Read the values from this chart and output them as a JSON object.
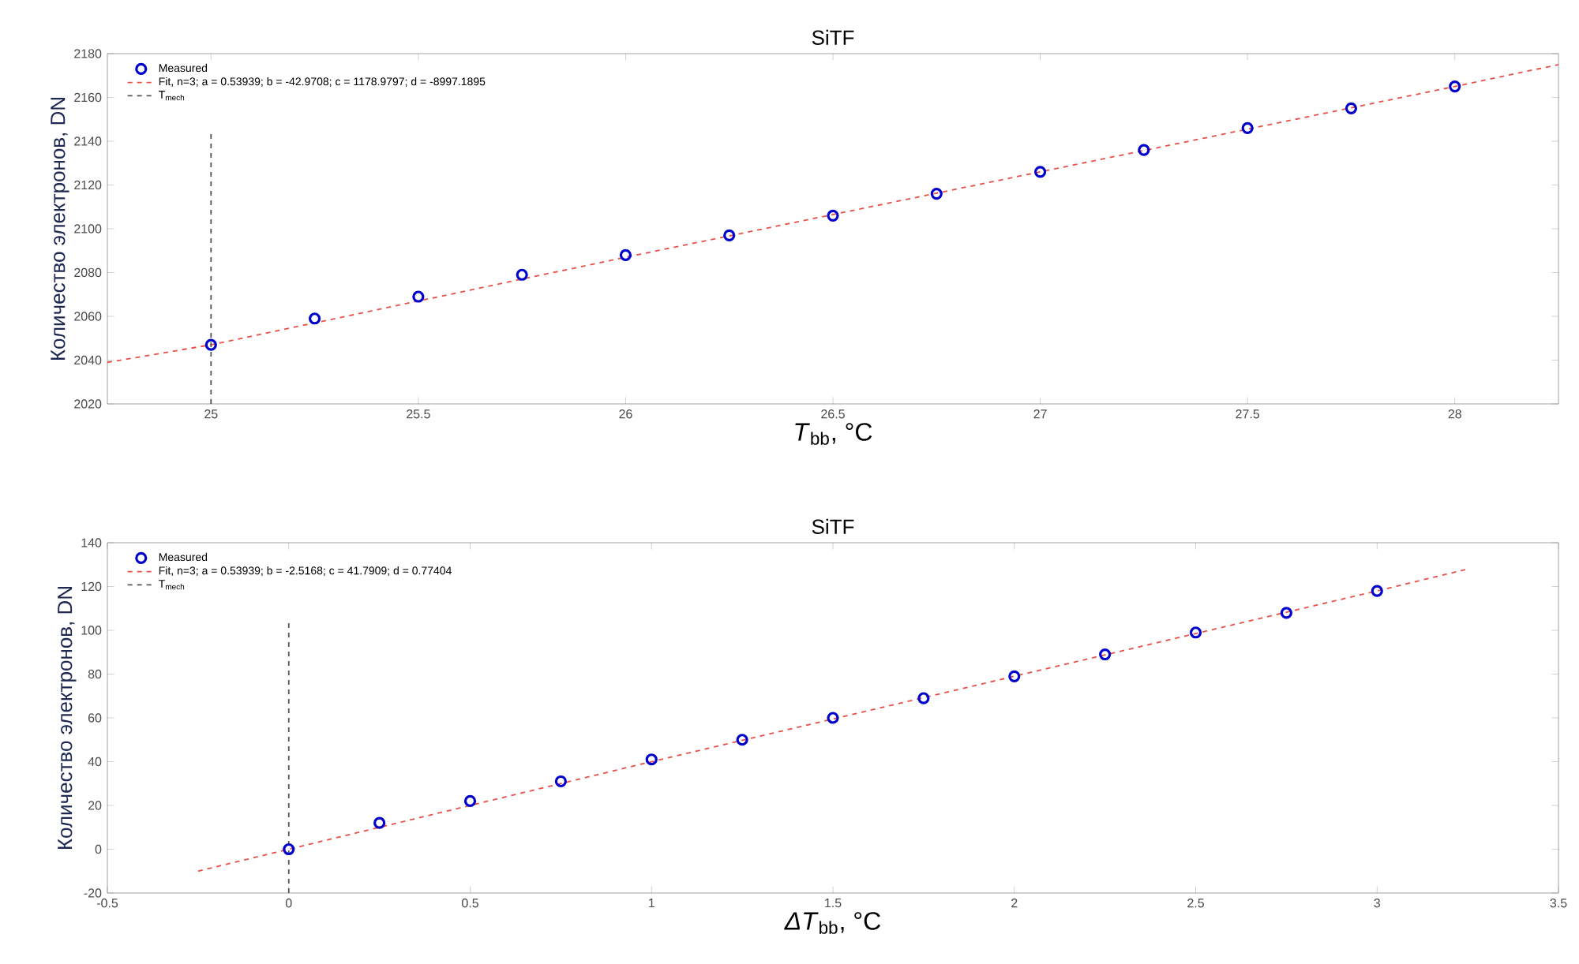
{
  "chart_data": [
    {
      "type": "scatter",
      "title": "SiTF",
      "xlabel": "*T*$_{bb}$, °C",
      "ylabel": "Количество электронов, DN",
      "legend": "top left",
      "xlim": [
        24.75,
        28.25
      ],
      "ylim": [
        2020,
        2180
      ],
      "xticks": [
        25,
        25.5,
        26,
        26.5,
        27,
        27.5,
        28
      ],
      "yticks": [
        2020,
        2040,
        2060,
        2080,
        2100,
        2120,
        2140,
        2160,
        2180
      ],
      "series": [
        {
          "name": "Measured",
          "type": "scatter",
          "marker": "circle",
          "color": "#0000cc",
          "x": [
            25,
            25.25,
            25.5,
            25.75,
            26,
            26.25,
            26.5,
            26.75,
            27,
            27.25,
            27.5,
            27.75,
            28
          ],
          "values": [
            2047,
            2059,
            2069,
            2079,
            2088,
            2097,
            2106,
            2116,
            2126,
            2136,
            2146,
            2155,
            2165
          ]
        },
        {
          "name": "Fit, n=3; a = 0.53939; b = -42.9708; c = 1178.9797; d = -8997.1895",
          "type": "line",
          "line_style": "dashed",
          "color": "#e8504a",
          "x": [
            24.75,
            25,
            26,
            27,
            28,
            28.25
          ],
          "values": [
            2039,
            2047,
            2087,
            2126,
            2165,
            2175
          ]
        }
      ],
      "ref_lines": [
        {
          "axis": "x",
          "value": 25,
          "label": "T$_{mech}$",
          "color": "#555555",
          "line_style": "dashed"
        }
      ]
    },
    {
      "type": "scatter",
      "title": "SiTF",
      "xlabel": "*ΔT*$_{bb}$, °C",
      "ylabel": "Количество электронов, DN",
      "legend": "top left",
      "xlim": [
        -0.5,
        3.5
      ],
      "ylim": [
        -20,
        140
      ],
      "xticks": [
        -0.5,
        0,
        0.5,
        1,
        1.5,
        2,
        2.5,
        3,
        3.5
      ],
      "yticks": [
        -20,
        0,
        20,
        40,
        60,
        80,
        100,
        120,
        140
      ],
      "series": [
        {
          "name": "Measured",
          "type": "scatter",
          "marker": "circle",
          "color": "#0000cc",
          "x": [
            0,
            0.25,
            0.5,
            0.75,
            1,
            1.25,
            1.5,
            1.75,
            2,
            2.25,
            2.5,
            2.75,
            3
          ],
          "values": [
            0,
            12,
            22,
            31,
            41,
            50,
            60,
            69,
            79,
            89,
            99,
            108,
            118
          ]
        },
        {
          "name": "Fit, n=3; a = 0.53939; b = -2.5168; c = 41.7909; d = 0.77404",
          "type": "line",
          "line_style": "dashed",
          "color": "#e8504a",
          "x": [
            -0.25,
            0,
            1,
            2,
            3,
            3.25
          ],
          "values": [
            -10,
            0,
            40,
            79,
            118,
            128
          ]
        }
      ],
      "ref_lines": [
        {
          "axis": "x",
          "value": 0,
          "label": "T$_{mech}$",
          "color": "#555555",
          "line_style": "dashed"
        }
      ]
    }
  ]
}
